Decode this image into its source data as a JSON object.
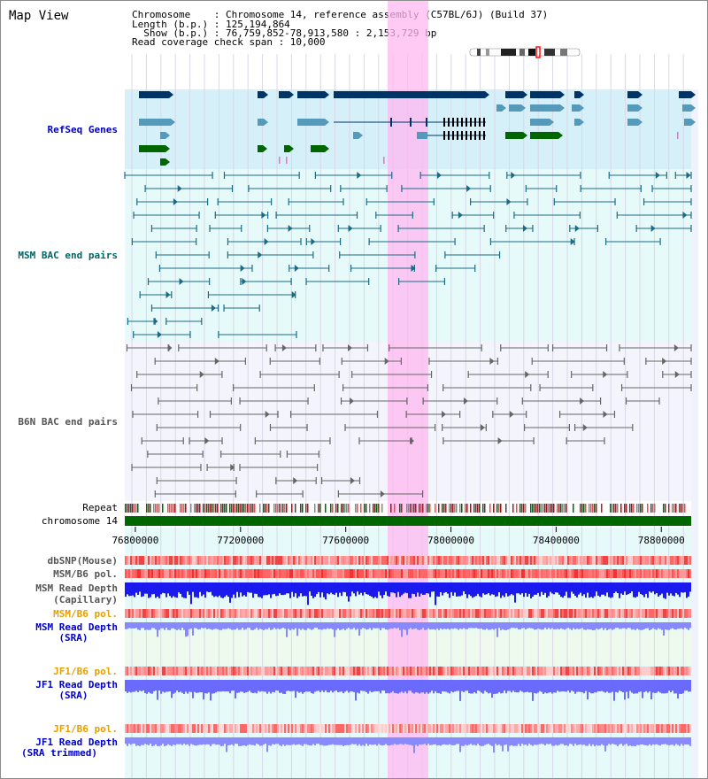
{
  "title": "Map View",
  "info": {
    "line1": "Chromosome    : Chromosome 14, reference assembly (C57BL/6J) (Build 37)",
    "line2": "Length (b.p.) : 125,194,864",
    "line3": "  Show (b.p.) : 76,759,852-78,913,580 : 2,153,729 bp",
    "line4": "Read coverage check span : 10,000"
  },
  "tracks": {
    "refseq": "RefSeq Genes",
    "msm_bac": "MSM BAC end pairs",
    "b6n_bac": "B6N BAC end pairs",
    "repeat": "Repeat",
    "chromosome": "chromosome 14",
    "dbsnp": "dbSNP(Mouse)",
    "msm_b6_pol": "MSM/B6 pol.",
    "msm_depth_cap_1": "MSM Read Depth",
    "msm_depth_cap_2": "(Capillary)",
    "msm_b6_pol_2": "MSM/B6 pol.",
    "msm_depth_sra_1": "MSM Read Depth",
    "msm_depth_sra_2": "(SRA)",
    "jf1_b6_pol": "JF1/B6 pol.",
    "jf1_depth_sra_1": "JF1 Read Depth",
    "jf1_depth_sra_2": "(SRA)",
    "jf1_b6_pol_2": "JF1/B6 pol.",
    "jf1_depth_trim_1": "JF1 Read Depth",
    "jf1_depth_trim_2": "(SRA trimmed)"
  },
  "axis": {
    "start": 76759852,
    "end": 78913580,
    "ticks": [
      "76800000",
      "77200000",
      "77600000",
      "78000000",
      "78400000",
      "78800000"
    ]
  },
  "colors": {
    "refseq_label": "#0000cc",
    "msm_label": "#006666",
    "b6n_label": "#555555",
    "pol_orange": "#e6a000",
    "depth_blue": "#0000cc",
    "highlight": "#ffb8f0",
    "chromosome_bar": "#006600"
  }
}
